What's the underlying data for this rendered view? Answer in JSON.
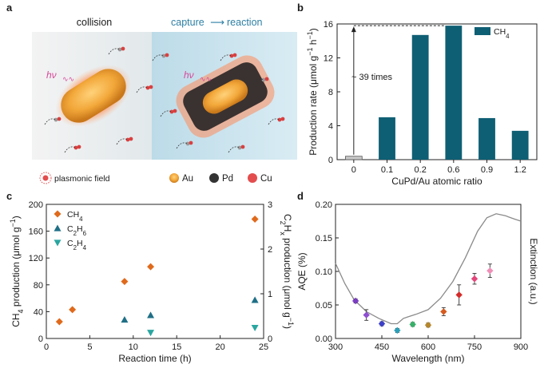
{
  "panels": {
    "a": {
      "label": "a",
      "title_left": "collision",
      "title_right": "capture",
      "title_right_arrow": "⟶",
      "title_right_end": "reaction",
      "hv": "hν",
      "legend": {
        "field": "plasmonic field",
        "au": "Au",
        "pd": "Pd",
        "cu": "Cu"
      }
    },
    "b": {
      "label": "b",
      "annotation": "~ 39 times"
    },
    "c": {
      "label": "c"
    },
    "d": {
      "label": "d"
    }
  },
  "colors": {
    "bar": "#0f5f74",
    "ch4": "#e06a1c",
    "c2h6": "#1f6f86",
    "c2h4": "#2aa6a0",
    "au": "#e8a43c",
    "pd": "#333333",
    "cu": "#e34d4d",
    "glow": "#f26a2e",
    "reactor_bg": "#c9e3ef"
  },
  "chart_data": [
    {
      "panel": "b",
      "type": "bar",
      "categories": [
        "0",
        "0.1",
        "0.2",
        "0.6",
        "0.9",
        "1.2"
      ],
      "series": [
        {
          "name": "CH4",
          "values": [
            0.4,
            5.0,
            14.7,
            15.8,
            4.9,
            3.4
          ]
        }
      ],
      "xlabel": "CuPd/Au atomic ratio",
      "ylabel": "Production rate (μmol g−1 h−1)",
      "ylim": [
        0,
        16
      ],
      "yticks": [
        0,
        4,
        8,
        12,
        16
      ],
      "legend_position": "top-right"
    },
    {
      "panel": "c",
      "type": "scatter",
      "xlabel": "Reaction time (h)",
      "ylabel": "CH4 production (μmol g−1)",
      "y2label": "C2Hx production (μmol g−1)",
      "xlim": [
        0,
        25
      ],
      "xticks": [
        0,
        5,
        10,
        15,
        20,
        25
      ],
      "ylim": [
        0,
        200
      ],
      "yticks": [
        0,
        40,
        80,
        120,
        160,
        200
      ],
      "y2lim": [
        0,
        3
      ],
      "y2ticks": [
        0,
        1,
        2,
        3
      ],
      "series": [
        {
          "name": "CH4",
          "axis": "left",
          "marker": "diamond",
          "points": [
            [
              1.5,
              25
            ],
            [
              3,
              43
            ],
            [
              9,
              85
            ],
            [
              12,
              107
            ],
            [
              24,
              178
            ]
          ]
        },
        {
          "name": "C2H6",
          "axis": "right",
          "marker": "triangle-up",
          "points": [
            [
              9,
              0.42
            ],
            [
              12,
              0.52
            ],
            [
              24,
              0.86
            ]
          ]
        },
        {
          "name": "C2H4",
          "axis": "right",
          "marker": "triangle-down",
          "points": [
            [
              12,
              0.13
            ],
            [
              24,
              0.24
            ]
          ]
        }
      ],
      "legend_position": "top-left"
    },
    {
      "panel": "d",
      "type": "scatter",
      "xlabel": "Wavelength (nm)",
      "ylabel": "AQE (%)",
      "y2label": "Extinction (a.u.)",
      "xlim": [
        300,
        900
      ],
      "xticks": [
        300,
        450,
        600,
        750,
        900
      ],
      "ylim": [
        0,
        0.2
      ],
      "yticks": [
        "0.00",
        "0.05",
        "0.10",
        "0.15",
        "0.20"
      ],
      "points": [
        {
          "x": 365,
          "y": 0.056,
          "err": 0.003,
          "color": "#7a3cc0"
        },
        {
          "x": 400,
          "y": 0.035,
          "err": 0.008,
          "color": "#8e4fd0"
        },
        {
          "x": 450,
          "y": 0.022,
          "err": 0.003,
          "color": "#3b3fc8"
        },
        {
          "x": 500,
          "y": 0.012,
          "err": 0.003,
          "color": "#2c9fb8"
        },
        {
          "x": 550,
          "y": 0.021,
          "err": 0.003,
          "color": "#38b06a"
        },
        {
          "x": 600,
          "y": 0.02,
          "err": 0.003,
          "color": "#b5872a"
        },
        {
          "x": 650,
          "y": 0.04,
          "err": 0.006,
          "color": "#d65a1e"
        },
        {
          "x": 700,
          "y": 0.065,
          "err": 0.015,
          "color": "#d42a2a"
        },
        {
          "x": 750,
          "y": 0.089,
          "err": 0.008,
          "color": "#e2467a"
        },
        {
          "x": 800,
          "y": 0.101,
          "err": 0.01,
          "color": "#f08fb8"
        }
      ],
      "extinction_curve_on_y_scale": [
        [
          300,
          0.112
        ],
        [
          330,
          0.082
        ],
        [
          360,
          0.058
        ],
        [
          400,
          0.04
        ],
        [
          440,
          0.03
        ],
        [
          480,
          0.022
        ],
        [
          500,
          0.022
        ],
        [
          520,
          0.03
        ],
        [
          560,
          0.036
        ],
        [
          600,
          0.043
        ],
        [
          640,
          0.06
        ],
        [
          680,
          0.085
        ],
        [
          720,
          0.12
        ],
        [
          760,
          0.16
        ],
        [
          790,
          0.18
        ],
        [
          820,
          0.186
        ],
        [
          850,
          0.183
        ],
        [
          880,
          0.178
        ],
        [
          900,
          0.175
        ]
      ]
    }
  ]
}
